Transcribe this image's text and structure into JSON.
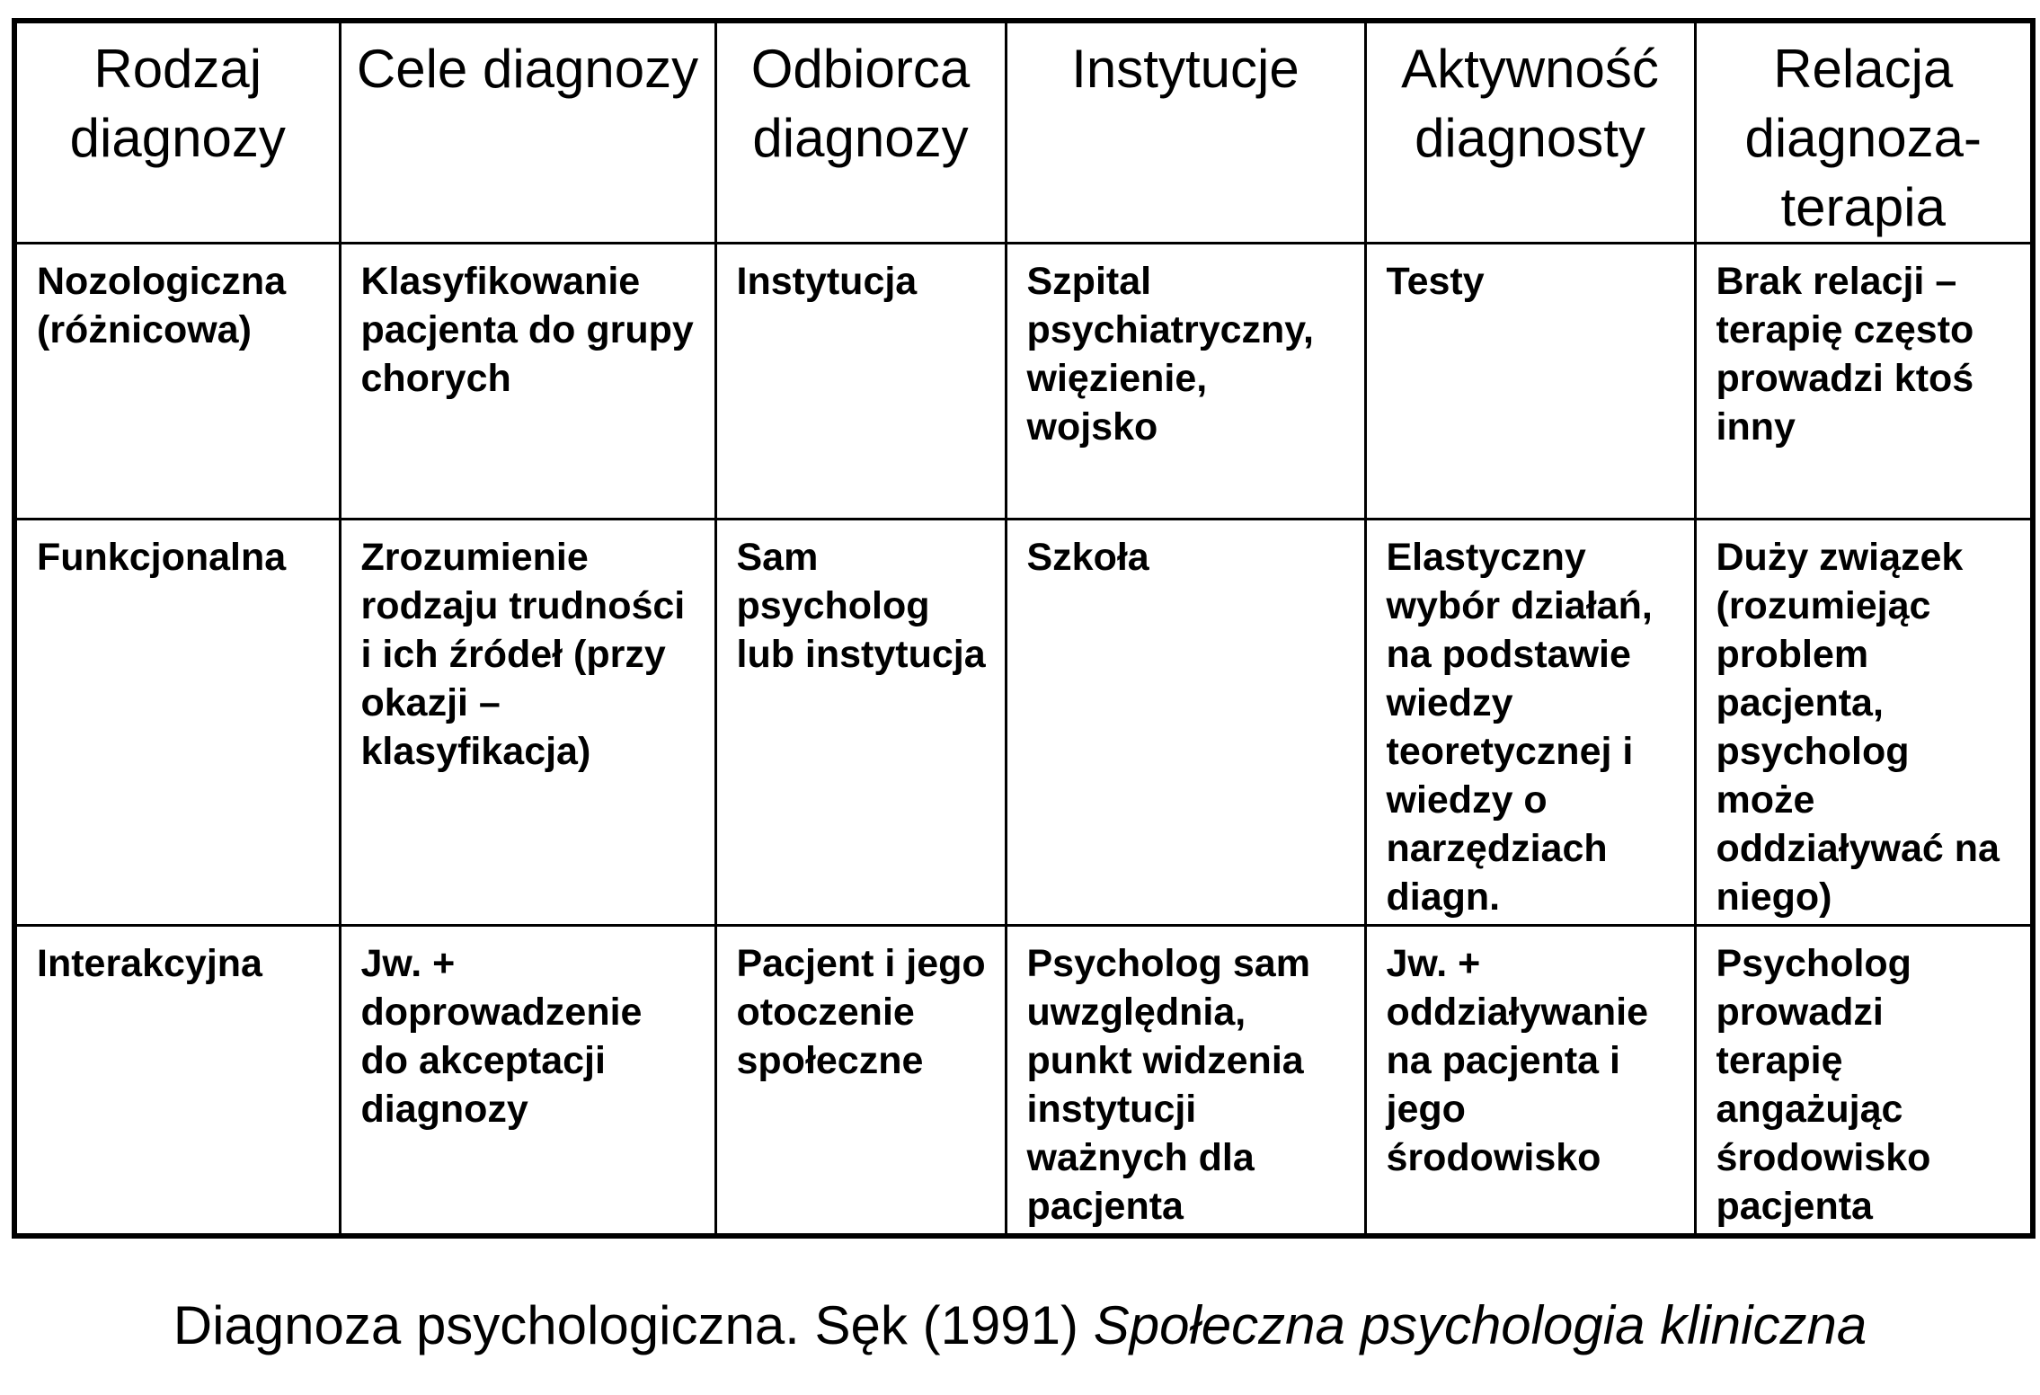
{
  "table": {
    "headers": [
      "Rodzaj diagnozy",
      "Cele diagnozy",
      "Odbiorca diagnozy",
      "Instytucje",
      "Aktywność diagnosty",
      "Relacja diagnoza-terapia"
    ],
    "rows": [
      [
        "Nozologiczna (różnicowa)",
        "Klasyfikowanie pacjenta do grupy chorych",
        "Instytucja",
        "Szpital psychiatryczny, więzienie, wojsko",
        "Testy",
        "Brak relacji – terapię często prowadzi ktoś inny"
      ],
      [
        "Funkcjonalna",
        "Zrozumienie rodzaju trudności i ich źródeł (przy okazji – klasyfikacja)",
        "Sam psycholog lub instytucja",
        "Szkoła",
        "Elastyczny wybór działań, na podstawie wiedzy teoretycznej i wiedzy o narzędziach diagn.",
        "Duży związek (rozumiejąc problem pacjenta, psycholog może oddziaływać na niego)"
      ],
      [
        "Interakcyjna",
        "Jw. + doprowadzenie do akceptacji diagnozy",
        "Pacjent i jego otoczenie społeczne",
        "Psycholog sam uwzględnia, punkt widzenia instytucji ważnych dla pacjenta",
        "Jw. + oddziaływanie na pacjenta i jego środowisko",
        "Psycholog prowadzi terapię angażując środowisko pacjenta"
      ]
    ]
  },
  "caption": {
    "text": "Diagnoza psychologiczna. Sęk (1991) ",
    "italic": "Społeczna psychologia kliniczna"
  }
}
